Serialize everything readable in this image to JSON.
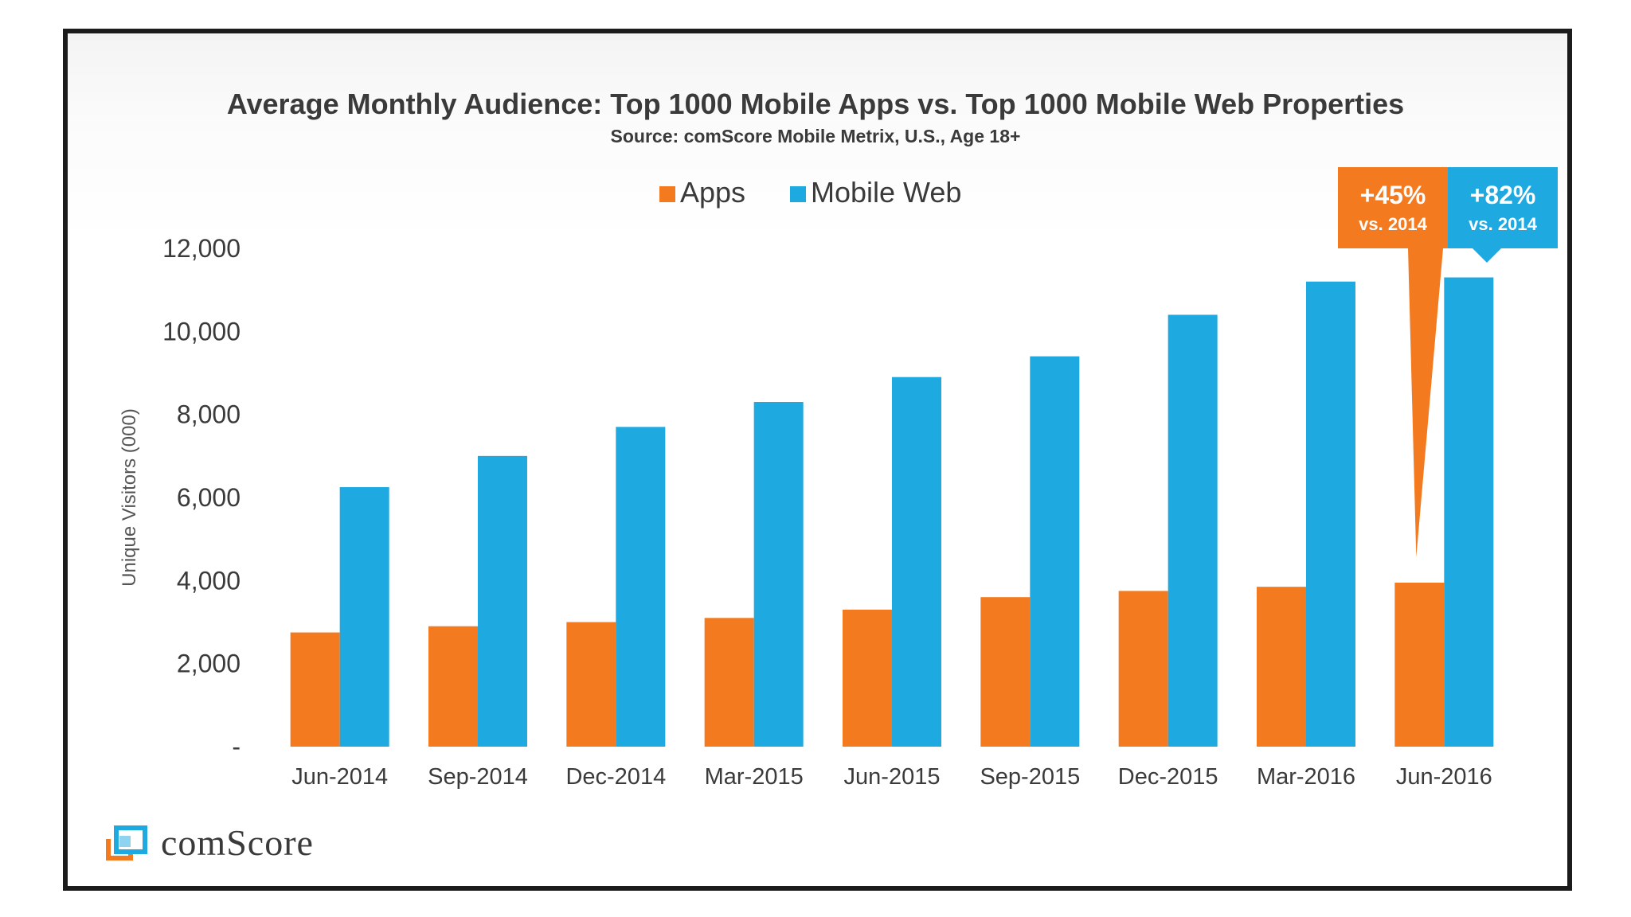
{
  "chart_data": {
    "type": "bar",
    "title": "Average Monthly Audience: Top 1000 Mobile Apps vs. Top 1000 Mobile Web Properties",
    "subtitle": "Source: comScore Mobile Metrix, U.S., Age 18+",
    "ylabel": "Unique Visitors (000)",
    "xlabel": "",
    "ylim": [
      0,
      12000
    ],
    "yticks": [
      0,
      2000,
      4000,
      6000,
      8000,
      10000,
      12000
    ],
    "ytick_labels": [
      "-",
      "2,000",
      "4,000",
      "6,000",
      "8,000",
      "10,000",
      "12,000"
    ],
    "categories": [
      "Jun-2014",
      "Sep-2014",
      "Dec-2014",
      "Mar-2015",
      "Jun-2015",
      "Sep-2015",
      "Dec-2015",
      "Mar-2016",
      "Jun-2016"
    ],
    "series": [
      {
        "name": "Apps",
        "color": "#f47a20",
        "values": [
          2750,
          2900,
          3000,
          3100,
          3300,
          3600,
          3750,
          3850,
          3950
        ]
      },
      {
        "name": "Mobile Web",
        "color": "#1ea9e1",
        "values": [
          6250,
          7000,
          7700,
          8300,
          8900,
          9400,
          10400,
          11200,
          11300
        ]
      }
    ],
    "legend_position": "top-center",
    "annotations": [
      {
        "series": "Apps",
        "category": "Jun-2016",
        "value": "+45%",
        "subtext": "vs. 2014",
        "color": "#f47a20"
      },
      {
        "series": "Mobile Web",
        "category": "Jun-2016",
        "value": "+82%",
        "subtext": "vs. 2014",
        "color": "#1ea9e1"
      }
    ]
  },
  "logo": {
    "text": "comScore"
  }
}
